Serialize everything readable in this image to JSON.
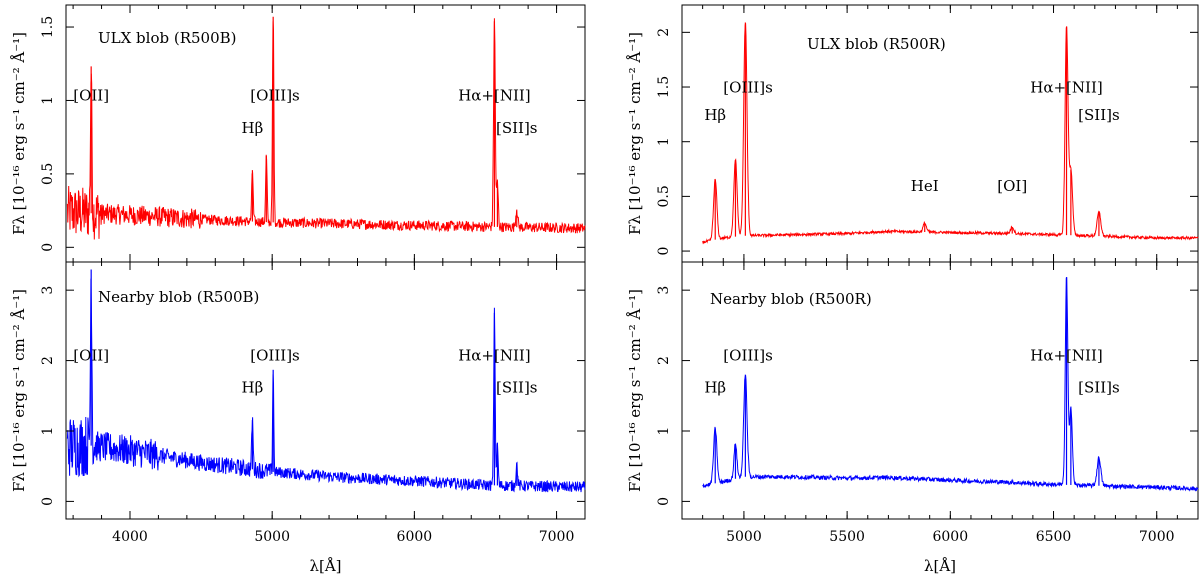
{
  "chart_data": [
    {
      "type": "line",
      "title": "ULX blob (R500B)",
      "xlabel": "λ[Å]",
      "ylabel": "Fλ [10⁻¹⁶ erg s⁻¹ cm⁻² Å⁻¹]",
      "xlim": [
        3550,
        7200
      ],
      "ylim": [
        -0.1,
        1.65
      ],
      "color": "#ff0000",
      "xticks": [
        4000,
        5000,
        6000,
        7000
      ],
      "yticks": [
        0,
        0.5,
        1,
        1.5
      ],
      "baseline": [
        [
          3550,
          0.24
        ],
        [
          4000,
          0.22
        ],
        [
          4500,
          0.19
        ],
        [
          5000,
          0.17
        ],
        [
          5500,
          0.16
        ],
        [
          6000,
          0.15
        ],
        [
          6500,
          0.14
        ],
        [
          7200,
          0.13
        ]
      ],
      "noise_ranges": [
        [
          3560,
          3800,
          0.18
        ],
        [
          3800,
          4500,
          0.07
        ],
        [
          4500,
          7200,
          0.035
        ]
      ],
      "peaks": [
        {
          "x": 3727,
          "h": 1.0,
          "w": 5
        },
        {
          "x": 4861,
          "h": 0.35,
          "w": 5
        },
        {
          "x": 4959,
          "h": 0.45,
          "w": 5
        },
        {
          "x": 5007,
          "h": 1.4,
          "w": 5
        },
        {
          "x": 6563,
          "h": 1.4,
          "w": 6
        },
        {
          "x": 6584,
          "h": 0.3,
          "w": 6
        },
        {
          "x": 6720,
          "h": 0.12,
          "w": 7
        }
      ],
      "annotations": [
        {
          "text": "[OII]",
          "x": 3727,
          "y": 1.0
        },
        {
          "text": "[OIII]s",
          "x": 5020,
          "y": 1.0
        },
        {
          "text": "Hβ",
          "x": 4861,
          "y": 0.78
        },
        {
          "text": "Hα+[NII]",
          "x": 6563,
          "y": 1.0
        },
        {
          "text": "[SII]s",
          "x": 6720,
          "y": 0.78
        }
      ]
    },
    {
      "type": "line",
      "title": "Nearby blob (R500B)",
      "xlabel": "λ[Å]",
      "ylabel": "Fλ [10⁻¹⁶ erg s⁻¹ cm⁻² Å⁻¹]",
      "xlim": [
        3550,
        7200
      ],
      "ylim": [
        -0.25,
        3.4
      ],
      "color": "#0000ff",
      "xticks": [
        4000,
        5000,
        6000,
        7000
      ],
      "yticks": [
        0,
        1,
        2,
        3
      ],
      "baseline": [
        [
          3550,
          0.78
        ],
        [
          3700,
          0.8
        ],
        [
          4000,
          0.72
        ],
        [
          4500,
          0.55
        ],
        [
          5000,
          0.42
        ],
        [
          5500,
          0.34
        ],
        [
          6000,
          0.29
        ],
        [
          6500,
          0.23
        ],
        [
          7200,
          0.2
        ]
      ],
      "noise_ranges": [
        [
          3560,
          3750,
          0.45
        ],
        [
          3750,
          4200,
          0.22
        ],
        [
          4200,
          5000,
          0.12
        ],
        [
          5000,
          7200,
          0.08
        ]
      ],
      "peaks": [
        {
          "x": 3727,
          "h": 2.5,
          "w": 5
        },
        {
          "x": 4861,
          "h": 0.7,
          "w": 5
        },
        {
          "x": 5007,
          "h": 1.45,
          "w": 4
        },
        {
          "x": 6563,
          "h": 2.45,
          "w": 5
        },
        {
          "x": 6584,
          "h": 0.6,
          "w": 5
        },
        {
          "x": 6720,
          "h": 0.3,
          "w": 6
        }
      ],
      "annotations": [
        {
          "text": "[OII]",
          "x": 3727,
          "y": 2.0
        },
        {
          "text": "[OIII]s",
          "x": 5020,
          "y": 2.0
        },
        {
          "text": "Hβ",
          "x": 4861,
          "y": 1.55
        },
        {
          "text": "Hα+[NII]",
          "x": 6563,
          "y": 2.0
        },
        {
          "text": "[SII]s",
          "x": 6720,
          "y": 1.55
        }
      ]
    },
    {
      "type": "line",
      "title": "ULX blob (R500R)",
      "xlabel": "λ[Å]",
      "ylabel": "Fλ [10⁻¹⁶ erg s⁻¹ cm⁻² Å⁻¹]",
      "xlim": [
        4700,
        7200
      ],
      "ylim": [
        -0.1,
        2.25
      ],
      "color": "#ff0000",
      "xticks": [
        5000,
        5500,
        6000,
        6500,
        7000
      ],
      "yticks": [
        0,
        0.5,
        1,
        1.5,
        2
      ],
      "baseline": [
        [
          4800,
          0.08
        ],
        [
          4900,
          0.12
        ],
        [
          5000,
          0.14
        ],
        [
          5500,
          0.16
        ],
        [
          5700,
          0.18
        ],
        [
          6000,
          0.17
        ],
        [
          6300,
          0.16
        ],
        [
          6500,
          0.15
        ],
        [
          7000,
          0.12
        ],
        [
          7200,
          0.12
        ]
      ],
      "noise_ranges": [
        [
          4800,
          7200,
          0.012
        ]
      ],
      "peaks": [
        {
          "x": 4861,
          "h": 0.55,
          "w": 8
        },
        {
          "x": 4959,
          "h": 0.7,
          "w": 8
        },
        {
          "x": 5007,
          "h": 1.95,
          "w": 8
        },
        {
          "x": 5876,
          "h": 0.08,
          "w": 8
        },
        {
          "x": 6300,
          "h": 0.06,
          "w": 8
        },
        {
          "x": 6563,
          "h": 1.9,
          "w": 7
        },
        {
          "x": 6584,
          "h": 0.6,
          "w": 8
        },
        {
          "x": 6720,
          "h": 0.22,
          "w": 9
        }
      ],
      "annotations": [
        {
          "text": "[OIII]s",
          "x": 5020,
          "y": 1.45
        },
        {
          "text": "Hβ",
          "x": 4861,
          "y": 1.2
        },
        {
          "text": "HeI",
          "x": 5876,
          "y": 0.55
        },
        {
          "text": "[OI]",
          "x": 6300,
          "y": 0.55
        },
        {
          "text": "Hα+[NII]",
          "x": 6563,
          "y": 1.45
        },
        {
          "text": "[SII]s",
          "x": 6720,
          "y": 1.2
        }
      ]
    },
    {
      "type": "line",
      "title": "Nearby blob (R500R)",
      "xlabel": "λ[Å]",
      "ylabel": "Fλ [10⁻¹⁶ erg s⁻¹ cm⁻² Å⁻¹]",
      "xlim": [
        4700,
        7200
      ],
      "ylim": [
        -0.25,
        3.4
      ],
      "color": "#0000ff",
      "xticks": [
        5000,
        5500,
        6000,
        6500,
        7000
      ],
      "yticks": [
        0,
        1,
        2,
        3
      ],
      "baseline": [
        [
          4800,
          0.22
        ],
        [
          4900,
          0.28
        ],
        [
          5000,
          0.35
        ],
        [
          5200,
          0.35
        ],
        [
          5500,
          0.33
        ],
        [
          5700,
          0.34
        ],
        [
          6000,
          0.3
        ],
        [
          6300,
          0.27
        ],
        [
          6500,
          0.24
        ],
        [
          7000,
          0.2
        ],
        [
          7200,
          0.18
        ]
      ],
      "noise_ranges": [
        [
          4800,
          7200,
          0.03
        ]
      ],
      "peaks": [
        {
          "x": 4861,
          "h": 0.78,
          "w": 8
        },
        {
          "x": 4959,
          "h": 0.5,
          "w": 7
        },
        {
          "x": 5007,
          "h": 1.45,
          "w": 8
        },
        {
          "x": 6563,
          "h": 2.95,
          "w": 6
        },
        {
          "x": 6584,
          "h": 1.1,
          "w": 7
        },
        {
          "x": 6720,
          "h": 0.4,
          "w": 9
        }
      ],
      "annotations": [
        {
          "text": "[OIII]s",
          "x": 5020,
          "y": 2.0
        },
        {
          "text": "Hβ",
          "x": 4861,
          "y": 1.55
        },
        {
          "text": "Hα+[NII]",
          "x": 6563,
          "y": 2.0
        },
        {
          "text": "[SII]s",
          "x": 6720,
          "y": 1.55
        }
      ]
    }
  ]
}
